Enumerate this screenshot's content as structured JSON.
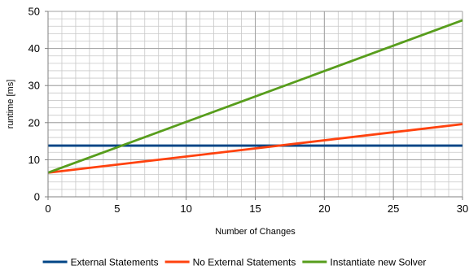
{
  "chart_data": {
    "type": "line",
    "title": "",
    "xlabel": "Number of Changes",
    "ylabel": "runtime [ms]",
    "xlim": [
      0,
      30
    ],
    "ylim": [
      0,
      50
    ],
    "x_ticks": [
      0,
      5,
      10,
      15,
      20,
      25,
      30
    ],
    "y_ticks": [
      0,
      10,
      20,
      30,
      40,
      50
    ],
    "x_minor_step": 1,
    "y_minor_step": 2,
    "grid": true,
    "legend_position": "bottom",
    "series": [
      {
        "name": "External Statements",
        "color": "#004586",
        "x": [
          0,
          30
        ],
        "y": [
          13.8,
          13.8
        ]
      },
      {
        "name": "No External Statements",
        "color": "#ff420e",
        "x": [
          0,
          30
        ],
        "y": [
          6.5,
          19.6
        ]
      },
      {
        "name": "Instantiate new Solver",
        "color": "#579d1c",
        "x": [
          0,
          30
        ],
        "y": [
          6.5,
          47.6
        ]
      }
    ]
  }
}
